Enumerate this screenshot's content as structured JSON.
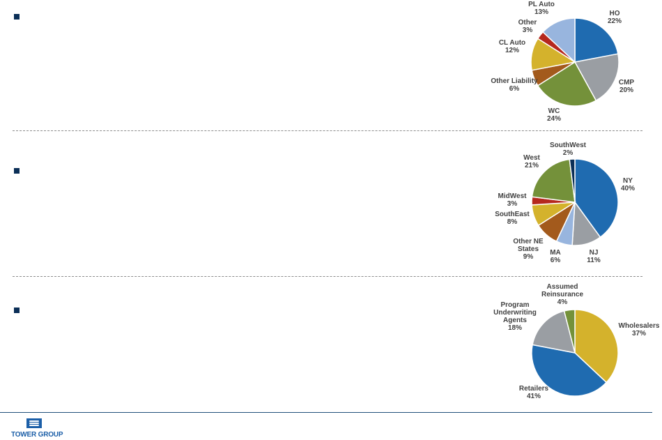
{
  "chart_data": [
    {
      "type": "pie",
      "slices": [
        {
          "label": "HO",
          "value": 22,
          "color": "#1f6bb0"
        },
        {
          "label": "CMP",
          "value": 20,
          "color": "#9a9ea3"
        },
        {
          "label": "WC",
          "value": 24,
          "color": "#74913a"
        },
        {
          "label": "Other Liability",
          "value": 6,
          "color": "#a35a1c"
        },
        {
          "label": "CL Auto",
          "value": 12,
          "color": "#d4b22c"
        },
        {
          "label": "Other",
          "value": 3,
          "color": "#b5281e"
        },
        {
          "label": "PL Auto",
          "value": 13,
          "color": "#98b5de"
        }
      ]
    },
    {
      "type": "pie",
      "slices": [
        {
          "label": "NY",
          "value": 40,
          "color": "#1f6bb0"
        },
        {
          "label": "NJ",
          "value": 11,
          "color": "#9a9ea3"
        },
        {
          "label": "MA",
          "value": 6,
          "color": "#98b5de"
        },
        {
          "label": "Other NE States",
          "value": 9,
          "color": "#a35a1c"
        },
        {
          "label": "SouthEast",
          "value": 8,
          "color": "#d4b22c"
        },
        {
          "label": "MidWest",
          "value": 3,
          "color": "#b5281e"
        },
        {
          "label": "West",
          "value": 21,
          "color": "#74913a"
        },
        {
          "label": "SouthWest",
          "value": 2,
          "color": "#0b2f57"
        }
      ]
    },
    {
      "type": "pie",
      "slices": [
        {
          "label": "Wholesalers",
          "value": 37,
          "color": "#d4b22c"
        },
        {
          "label": "Retailers",
          "value": 41,
          "color": "#1f6bb0"
        },
        {
          "label": "Program Underwriting Agents",
          "value": 18,
          "color": "#9a9ea3"
        },
        {
          "label": "Assumed Reinsurance",
          "value": 4,
          "color": "#74913a"
        }
      ]
    }
  ],
  "labels": [
    [
      {
        "lines": [
          "HO",
          "22%"
        ]
      },
      {
        "lines": [
          "CMP",
          "20%"
        ]
      },
      {
        "lines": [
          "WC",
          "24%"
        ]
      },
      {
        "lines": [
          "Other Liability",
          "6%"
        ]
      },
      {
        "lines": [
          "CL Auto",
          "12%"
        ]
      },
      {
        "lines": [
          "Other",
          "3%"
        ]
      },
      {
        "lines": [
          "PL Auto",
          "13%"
        ]
      }
    ],
    [
      {
        "lines": [
          "NY",
          "40%"
        ]
      },
      {
        "lines": [
          "NJ",
          "11%"
        ]
      },
      {
        "lines": [
          "MA",
          "6%"
        ]
      },
      {
        "lines": [
          "Other NE",
          "States",
          "9%"
        ]
      },
      {
        "lines": [
          "SouthEast",
          "8%"
        ]
      },
      {
        "lines": [
          "MidWest",
          "3%"
        ]
      },
      {
        "lines": [
          "West",
          "21%"
        ]
      },
      {
        "lines": [
          "SouthWest",
          "2%"
        ]
      }
    ],
    [
      {
        "lines": [
          "Wholesalers",
          "37%"
        ]
      },
      {
        "lines": [
          "Retailers",
          "41%"
        ]
      },
      {
        "lines": [
          "Program",
          "Underwriting",
          "Agents",
          "18%"
        ]
      },
      {
        "lines": [
          "Assumed",
          "Reinsurance",
          "4%"
        ]
      }
    ]
  ],
  "footer": {
    "logo_text": "TOWER GROUP",
    "logo_mark": "waves-logo-icon"
  }
}
